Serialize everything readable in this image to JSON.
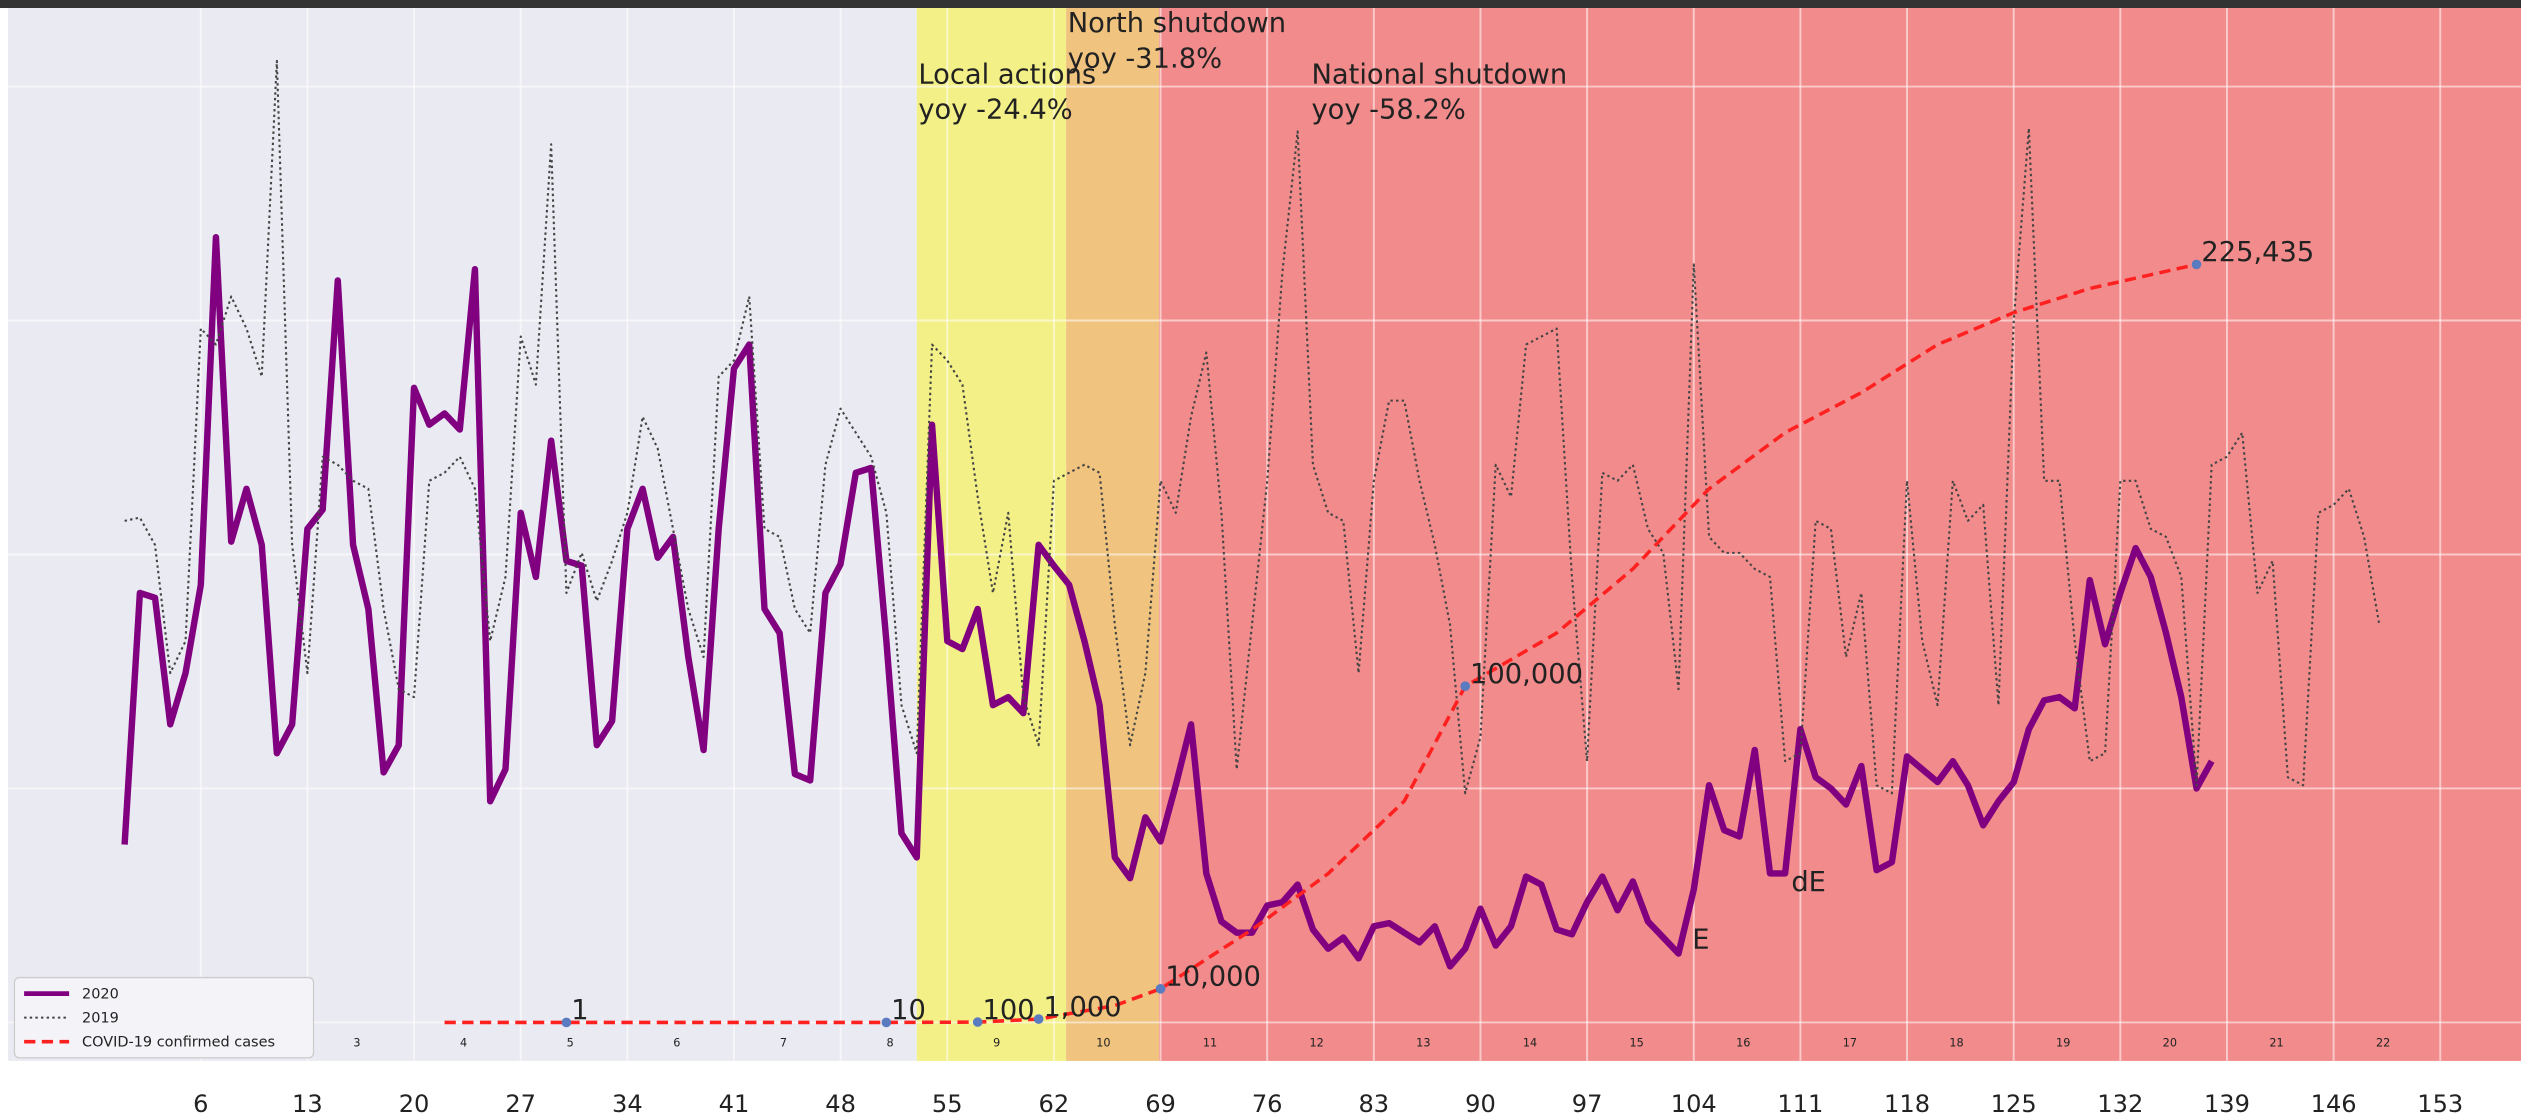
{
  "chart_data": {
    "type": "line",
    "xlim": [
      -6.65,
      158.3
    ],
    "xticks": [
      6,
      13,
      20,
      27,
      34,
      41,
      48,
      55,
      62,
      69,
      76,
      83,
      90,
      97,
      104,
      111,
      118,
      125,
      132,
      139,
      146,
      153
    ],
    "ylim": [
      -24,
      633
    ],
    "yticks": [
      0,
      146,
      292,
      438,
      584
    ],
    "y2lim": [
      -11438,
      301690
    ],
    "grid": true,
    "legend": "lower left",
    "regions": [
      {
        "start": -6.65,
        "end": 53.0,
        "color": "#eaeaf2"
      },
      {
        "start": 53.0,
        "end": 62.8,
        "color": "#f3f087"
      },
      {
        "start": 62.8,
        "end": 68.9,
        "color": "#f0c47f"
      },
      {
        "start": 68.9,
        "end": 158.3,
        "color": "#f28b8b"
      }
    ],
    "series": [
      {
        "name": "2020",
        "color": "#800080",
        "style": "solid",
        "x": [
          1,
          2,
          3,
          4,
          5,
          6,
          7,
          8,
          9,
          10,
          11,
          12,
          13,
          14,
          15,
          16,
          17,
          18,
          19,
          20,
          21,
          22,
          23,
          24,
          25,
          26,
          27,
          28,
          29,
          30,
          31,
          32,
          33,
          34,
          35,
          36,
          37,
          38,
          39,
          40,
          41,
          42,
          43,
          44,
          45,
          46,
          47,
          48,
          49,
          50,
          51,
          52,
          53,
          54,
          55,
          56,
          57,
          58,
          59,
          60,
          61,
          62,
          63,
          64,
          65,
          66,
          67,
          68,
          69,
          70,
          71,
          72,
          73,
          74,
          75,
          76,
          77,
          78,
          79,
          80,
          81,
          82,
          83,
          84,
          85,
          86,
          87,
          88,
          89,
          90,
          91,
          92,
          93,
          94,
          95,
          96,
          97,
          98,
          99,
          100,
          101,
          102,
          103,
          104,
          105,
          106,
          107,
          108,
          109,
          110,
          111,
          112,
          113,
          114,
          115,
          116,
          117,
          118,
          119,
          120,
          121,
          122,
          123,
          124,
          125,
          126,
          127,
          128,
          129,
          130,
          131,
          132,
          133,
          134,
          135,
          136,
          137,
          138
        ],
        "values": [
          111,
          268,
          265,
          186,
          218,
          273,
          490,
          300,
          333,
          298,
          168,
          186,
          308,
          320,
          463,
          298,
          258,
          156,
          173,
          396,
          373,
          380,
          370,
          470,
          138,
          158,
          318,
          278,
          363,
          288,
          285,
          173,
          188,
          308,
          333,
          290,
          303,
          228,
          170,
          308,
          408,
          423,
          258,
          243,
          155,
          151,
          268,
          286,
          343,
          346,
          238,
          118,
          103,
          373,
          238,
          233,
          258,
          198,
          203,
          193,
          298,
          285,
          273,
          238,
          198,
          103,
          90,
          128,
          113,
          148,
          186,
          93,
          63,
          56,
          56,
          73,
          75,
          86,
          58,
          46,
          53,
          40,
          60,
          62,
          56,
          50,
          60,
          35,
          46,
          71,
          48,
          60,
          91,
          86,
          58,
          55,
          75,
          91,
          70,
          88,
          63,
          53,
          43,
          83,
          148,
          120,
          116,
          170,
          93,
          93,
          183,
          153,
          146,
          136,
          160,
          95,
          100,
          166,
          158,
          150,
          163,
          148,
          123,
          138,
          150,
          183,
          201,
          203,
          196,
          276,
          236,
          268,
          296,
          278,
          243,
          203,
          146,
          163
        ]
      },
      {
        "name": "2019",
        "color": "#444444",
        "style": "dotted",
        "x": [
          1,
          2,
          3,
          4,
          5,
          6,
          7,
          8,
          9,
          10,
          11,
          12,
          13,
          14,
          15,
          16,
          17,
          18,
          19,
          20,
          21,
          22,
          23,
          24,
          25,
          26,
          27,
          28,
          29,
          30,
          31,
          32,
          33,
          34,
          35,
          36,
          37,
          38,
          39,
          40,
          41,
          42,
          43,
          44,
          45,
          46,
          47,
          48,
          49,
          50,
          51,
          52,
          53,
          54,
          55,
          56,
          57,
          58,
          59,
          60,
          61,
          62,
          63,
          64,
          65,
          66,
          67,
          68,
          69,
          70,
          71,
          72,
          73,
          74,
          75,
          76,
          77,
          78,
          79,
          80,
          81,
          82,
          83,
          84,
          85,
          86,
          87,
          88,
          89,
          90,
          91,
          92,
          93,
          94,
          95,
          96,
          97,
          98,
          99,
          100,
          101,
          102,
          103,
          104,
          105,
          106,
          107,
          108,
          109,
          110,
          111,
          112,
          113,
          114,
          115,
          116,
          117,
          118,
          119,
          120,
          121,
          122,
          123,
          124,
          125,
          126,
          127,
          128,
          129,
          130,
          131,
          132,
          133,
          134,
          135,
          136,
          137,
          138,
          139,
          140,
          141,
          142,
          143,
          144,
          145,
          146,
          147,
          148,
          149
        ],
        "values": [
          313,
          315,
          298,
          218,
          238,
          433,
          423,
          453,
          433,
          403,
          600,
          298,
          218,
          353,
          348,
          338,
          333,
          258,
          208,
          203,
          338,
          343,
          353,
          333,
          238,
          278,
          428,
          398,
          548,
          268,
          293,
          263,
          288,
          318,
          378,
          358,
          308,
          258,
          228,
          403,
          413,
          453,
          308,
          303,
          258,
          243,
          348,
          383,
          368,
          353,
          318,
          198,
          168,
          423,
          413,
          398,
          328,
          268,
          318,
          203,
          173,
          338,
          343,
          348,
          343,
          248,
          173,
          218,
          338,
          318,
          378,
          418,
          318,
          158,
          248,
          338,
          468,
          556,
          348,
          318,
          313,
          218,
          338,
          388,
          388,
          338,
          298,
          248,
          143,
          178,
          348,
          328,
          423,
          428,
          433,
          278,
          163,
          343,
          338,
          348,
          308,
          293,
          208,
          473,
          303,
          293,
          293,
          283,
          278,
          163,
          168,
          313,
          308,
          228,
          268,
          148,
          143,
          338,
          238,
          198,
          338,
          313,
          323,
          198,
          438,
          558,
          338,
          338,
          238,
          163,
          168,
          338,
          338,
          308,
          303,
          278,
          148,
          348,
          353,
          368,
          268,
          288,
          153,
          148,
          318,
          323,
          333,
          303,
          248
        ]
      },
      {
        "name": "COVID-19 confirmed cases",
        "color": "#ff2020",
        "style": "dashed",
        "axis": "y2",
        "x": [
          22,
          30,
          40,
          51,
          57,
          61,
          66,
          69,
          75,
          80,
          85,
          89,
          95,
          100,
          105,
          110,
          115,
          120,
          125,
          130,
          137
        ],
        "values": [
          0,
          1,
          2,
          10,
          100,
          1000,
          5000,
          10000,
          27600,
          44300,
          65800,
          100000,
          115800,
          134900,
          158700,
          175400,
          187300,
          201600,
          211100,
          218300,
          225435
        ],
        "value_labels": [
          null,
          "1",
          null,
          "10",
          "100",
          "1,000",
          null,
          "10,000",
          null,
          null,
          null,
          "100,000",
          null,
          null,
          null,
          null,
          null,
          null,
          null,
          null,
          "225,435"
        ]
      }
    ],
    "annotations": [
      {
        "lines": [
          "Local actions",
          "yoy -24.4%"
        ],
        "x": 53.0,
        "y": 586
      },
      {
        "lines": [
          "North shutdown",
          "yoy -31.8%"
        ],
        "x": 62.8,
        "y": 618
      },
      {
        "lines": [
          "National shutdown",
          "yoy -58.2%"
        ],
        "x": 78.8,
        "y": 586
      },
      {
        "lines": [
          "E"
        ],
        "x": 103.8,
        "y": 46
      },
      {
        "lines": [
          "dE"
        ],
        "x": 110.3,
        "y": 82
      }
    ],
    "week_labels": {
      "x": [
        16.25,
        23.25,
        30.25,
        37.25,
        44.25,
        51.25,
        58.25,
        65.25,
        72.25,
        79.25,
        86.25,
        93.25,
        100.25,
        107.25,
        114.25,
        121.25,
        128.25,
        135.25,
        142.25,
        149.25
      ],
      "labels": [
        3,
        4,
        5,
        6,
        7,
        8,
        9,
        10,
        11,
        12,
        13,
        14,
        15,
        16,
        17,
        18,
        19,
        20,
        21,
        22
      ]
    }
  }
}
